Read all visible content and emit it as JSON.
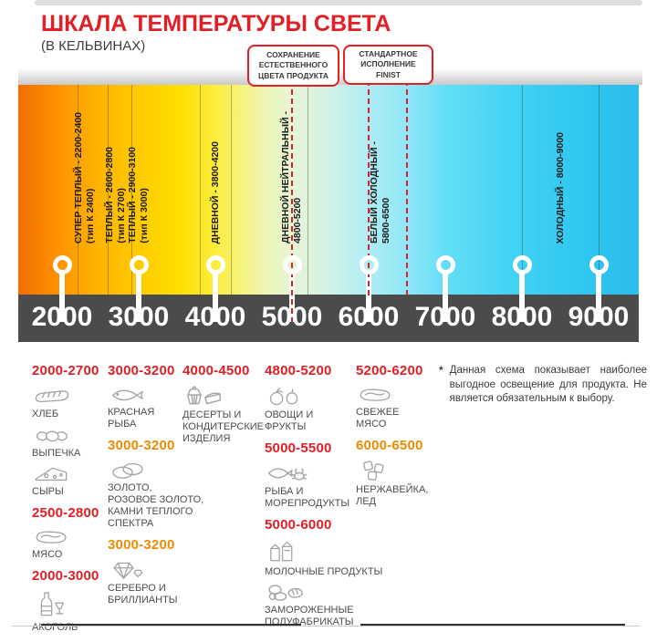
{
  "header": {
    "title": "ШКАЛА ТЕМПЕРАТУРЫ СВЕТА",
    "subtitle": "(В КЕЛЬВИНАХ)"
  },
  "callouts": [
    {
      "lines": [
        "СОХРАНЕНИЕ",
        "ЕСТЕСТВЕННОГО",
        "ЦВЕТА ПРОДУКТА"
      ],
      "marker_kelvins": [
        5000
      ]
    },
    {
      "lines": [
        "СТАНДАРТНОЕ",
        "ИСПОЛНЕНИЕ",
        "FINIST"
      ],
      "marker_kelvins": [
        6000,
        6500
      ]
    }
  ],
  "chart_data": {
    "type": "scale",
    "unit": "K",
    "axis_range": [
      2000,
      9000
    ],
    "axis_ticks": [
      2000,
      3000,
      4000,
      5000,
      6000,
      7000,
      8000,
      9000
    ],
    "zones": [
      {
        "label": "СУПЕР ТЕПЛЫЙ - 2200-2400",
        "sub": "(тип К 2400)",
        "range": [
          2200,
          2400
        ]
      },
      {
        "label": "ТЕПЛЫЙ - 2600-2800",
        "sub": "(тип К 2700)",
        "range": [
          2600,
          2800
        ]
      },
      {
        "label": "ТЕПЛЫЙ - 2900-3100",
        "sub": "(тип К 3000)",
        "range": [
          2900,
          3100
        ]
      },
      {
        "label": "ДНЕВНОЙ - 3800-4200",
        "sub": "",
        "range": [
          3800,
          4200
        ]
      },
      {
        "label": "ДНЕВНОЙ НЕЙТРАЛЬНЫЙ -",
        "sub": "4800-5200",
        "range": [
          4800,
          5200
        ]
      },
      {
        "label": "БЕЛЫЙ ХОЛОДНЫЙ -",
        "sub": "5800-6500",
        "range": [
          5800,
          6500
        ]
      },
      {
        "label": "ХОЛОДНЫЙ - 8000-9000",
        "sub": "",
        "range": [
          8000,
          9000
        ]
      }
    ],
    "boundary_lines_k": [
      2200,
      2600,
      2900,
      3800,
      4200,
      5200,
      8000,
      9000
    ],
    "gradient_stops": [
      [
        0,
        "#f36d00"
      ],
      [
        7,
        "#ff9600"
      ],
      [
        13,
        "#ffb400"
      ],
      [
        19,
        "#ffc900"
      ],
      [
        26,
        "#ffdf00"
      ],
      [
        32,
        "#fcee3e"
      ],
      [
        36,
        "#f6f37d"
      ],
      [
        40,
        "#eef5b5"
      ],
      [
        44,
        "#e7f5d5"
      ],
      [
        50,
        "#d3f2e7"
      ],
      [
        56,
        "#b2edf4"
      ],
      [
        63,
        "#8ce7f6"
      ],
      [
        69,
        "#63def7"
      ],
      [
        81,
        "#3ed2f3"
      ],
      [
        93,
        "#2fc4ef"
      ],
      [
        100,
        "#2bbdec"
      ]
    ]
  },
  "products": {
    "columns": [
      {
        "groups": [
          {
            "range": "2000-2700",
            "tone": "red",
            "items": [
              {
                "icon": "bread-icon",
                "label": "ХЛЕБ"
              },
              {
                "icon": "pastry-icon",
                "label": "ВЫПЕЧКА"
              },
              {
                "icon": "cheese-icon",
                "label": "СЫРЫ"
              }
            ]
          },
          {
            "range": "2500-2800",
            "tone": "red",
            "items": [
              {
                "icon": "meat-icon",
                "label": "МЯСО"
              }
            ]
          },
          {
            "range": "2000-3000",
            "tone": "red",
            "items": [
              {
                "icon": "alcohol-icon",
                "label": "АКОГОЛЬ"
              }
            ]
          }
        ]
      },
      {
        "groups": [
          {
            "range": "3000-3200",
            "tone": "red",
            "items": [
              {
                "icon": "fish-icon",
                "label": "КРАСНАЯ\nРЫБА"
              }
            ]
          },
          {
            "range": "3000-3200",
            "tone": "orange",
            "items": [
              {
                "icon": "rings-icon",
                "label": "ЗОЛОТО,\nРОЗОВОЕ ЗОЛОТО,\nКАМНИ ТЕПЛОГО\nСПЕКТРА"
              }
            ]
          },
          {
            "range": "3000-3200",
            "tone": "orange",
            "items": [
              {
                "icon": "diamond-icon",
                "label": "СЕРЕБРО И\nБРИЛЛИАНТЫ"
              }
            ]
          }
        ]
      },
      {
        "groups": [
          {
            "range": "4000-4500",
            "tone": "red",
            "items": [
              {
                "icon": "dessert-icon",
                "label": "ДЕСЕРТЫ И\nКОНДИТЕРСКИЕ\nИЗДЕЛИЯ"
              }
            ]
          }
        ]
      },
      {
        "groups": [
          {
            "range": "4800-5200",
            "tone": "red",
            "items": [
              {
                "icon": "fruits-icon",
                "label": "ОВОЩИ И\nФРУКТЫ"
              }
            ]
          },
          {
            "range": "5000-5500",
            "tone": "red",
            "items": [
              {
                "icon": "seafood-icon",
                "label": "РЫБА И\nМОРЕПРОДУКТЫ"
              }
            ]
          },
          {
            "range": "5000-6000",
            "tone": "red",
            "items": [
              {
                "icon": "milk-icon",
                "label": "МОЛОЧНЫЕ ПРОДУКТЫ"
              },
              {
                "icon": "frozen-icon",
                "label": "ЗАМОРОЖЕННЫЕ\nПОЛУФАБРИКАТЫ"
              }
            ]
          }
        ]
      },
      {
        "groups": [
          {
            "range": "5200-6200",
            "tone": "red",
            "items": [
              {
                "icon": "meat-icon",
                "label": "СВЕЖЕЕ\nМЯСО"
              }
            ]
          },
          {
            "range": "6000-6500",
            "tone": "orange",
            "items": [
              {
                "icon": "ice-icon",
                "label": "НЕРЖАВЕЙКА,\nЛЕД"
              }
            ]
          }
        ]
      }
    ]
  },
  "note": {
    "marker": "*",
    "text": "Данная схема показывает наиболее выгодное освещение для продукта. Не является обязательным к выбору."
  },
  "colors": {
    "accent_red": "#e31e24",
    "accent_orange": "#f18a00",
    "axis_bar": "#4b4b4b",
    "label_gray": "#4d4d4d"
  }
}
